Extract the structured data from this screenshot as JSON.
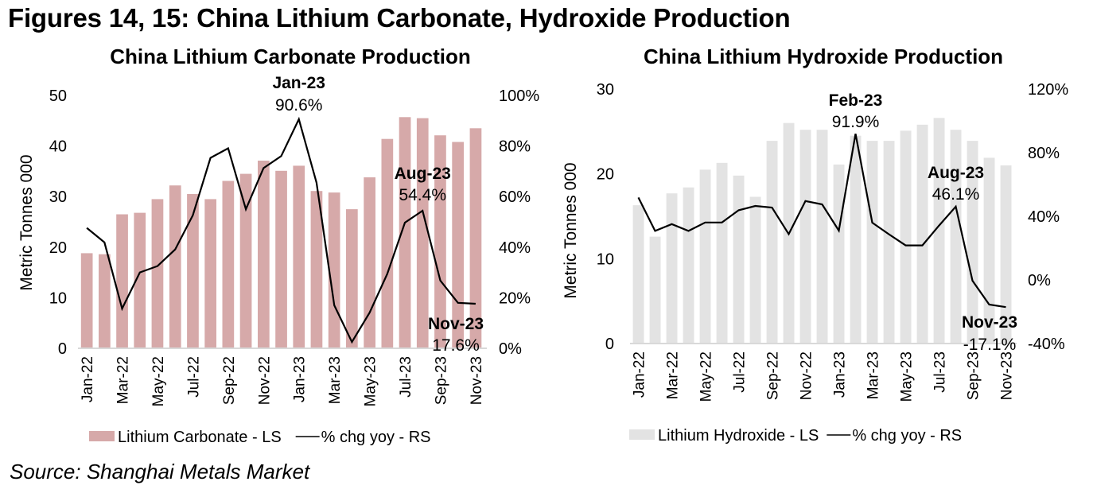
{
  "figure_title": "Figures 14, 15: China Lithium Carbonate, Hydroxide Production",
  "source": "Source: Shanghai Metals Market",
  "chart_data": [
    {
      "type": "bar+line",
      "title": "China Lithium Carbonate Production",
      "ylabel": "Metric Tonnes 000",
      "ylim": [
        0,
        50
      ],
      "y_ticks": [
        "0",
        "10",
        "20",
        "30",
        "40",
        "50"
      ],
      "y2lim": [
        0,
        100
      ],
      "y2_ticks": [
        "0%",
        "20%",
        "40%",
        "60%",
        "80%",
        "100%"
      ],
      "categories": [
        "Jan-22",
        "Feb-22",
        "Mar-22",
        "Apr-22",
        "May-22",
        "Jun-22",
        "Jul-22",
        "Aug-22",
        "Sep-22",
        "Oct-22",
        "Nov-22",
        "Dec-22",
        "Jan-23",
        "Feb-23",
        "Mar-23",
        "Apr-23",
        "May-23",
        "Jun-23",
        "Jul-23",
        "Aug-23",
        "Sep-23",
        "Oct-23",
        "Nov-23"
      ],
      "x_tick_labels": [
        "Jan-22",
        "Mar-22",
        "May-22",
        "Jul-22",
        "Sep-22",
        "Nov-22",
        "Jan-23",
        "Mar-23",
        "May-23",
        "Jul-23",
        "Sep-23",
        "Nov-23"
      ],
      "series": [
        {
          "name": "Lithium Carbonate - LS",
          "axis": "left",
          "kind": "bar",
          "color": "#d6a9a9",
          "values": [
            18.8,
            18.6,
            26.5,
            26.8,
            29.5,
            32.2,
            30.5,
            29.5,
            33.1,
            34.5,
            37.1,
            35.1,
            36.1,
            31.1,
            30.8,
            27.5,
            33.8,
            41.4,
            45.7,
            45.5,
            42.1,
            40.8,
            43.5
          ]
        },
        {
          "name": "% chg yoy - RS",
          "axis": "right",
          "kind": "line",
          "color": "#000000",
          "values": [
            47.6,
            41.9,
            15.7,
            30.0,
            32.5,
            39.1,
            52.6,
            75.3,
            79.1,
            55.0,
            71.3,
            76.0,
            90.6,
            65.5,
            17.0,
            2.5,
            14.1,
            29.4,
            49.7,
            54.4,
            26.8,
            18.0,
            17.6
          ]
        }
      ],
      "annotations": [
        {
          "label": "Jan-23",
          "value": "90.6%",
          "index": 12
        },
        {
          "label": "Aug-23",
          "value": "54.4%",
          "index": 19
        },
        {
          "label": "Nov-23",
          "value": "17.6%",
          "index": 22
        }
      ],
      "legend": "bottom"
    },
    {
      "type": "bar+line",
      "title": "China Lithium Hydroxide Production",
      "ylabel": "Metric Tonnes 000",
      "ylim": [
        0,
        30
      ],
      "y_ticks": [
        "0",
        "10",
        "20",
        "30"
      ],
      "y2lim": [
        -40,
        120
      ],
      "y2_ticks": [
        "-40%",
        "0%",
        "40%",
        "80%",
        "120%"
      ],
      "categories": [
        "Jan-22",
        "Feb-22",
        "Mar-22",
        "Apr-22",
        "May-22",
        "Jun-22",
        "Jul-22",
        "Aug-22",
        "Sep-22",
        "Oct-22",
        "Nov-22",
        "Dec-22",
        "Jan-23",
        "Feb-23",
        "Mar-23",
        "Apr-23",
        "May-23",
        "Jun-23",
        "Jul-23",
        "Aug-23",
        "Sep-23",
        "Oct-23",
        "Nov-23"
      ],
      "x_tick_labels": [
        "Jan-22",
        "Mar-22",
        "May-22",
        "Jul-22",
        "Sep-22",
        "Nov-22",
        "Jan-23",
        "Mar-23",
        "May-23",
        "Jul-23",
        "Sep-23",
        "Nov-23"
      ],
      "series": [
        {
          "name": "Lithium Hydroxide - LS",
          "axis": "left",
          "kind": "bar",
          "color": "#e3e3e3",
          "values": [
            16.3,
            12.6,
            17.7,
            18.4,
            20.5,
            21.3,
            19.8,
            17.3,
            23.9,
            26.0,
            25.2,
            25.2,
            21.1,
            24.5,
            23.9,
            23.9,
            25.1,
            25.8,
            26.6,
            25.2,
            23.9,
            21.9,
            21.0
          ]
        },
        {
          "name": "% chg yoy - RS",
          "axis": "right",
          "kind": "line",
          "color": "#000000",
          "values": [
            51.8,
            30.8,
            35.1,
            30.8,
            36.1,
            36.1,
            43.8,
            46.5,
            45.5,
            28.8,
            49.6,
            47.5,
            31.0,
            91.9,
            36.0,
            28.7,
            21.7,
            21.7,
            34.2,
            46.1,
            -0.5,
            -15.5,
            -17.1
          ]
        }
      ],
      "annotations": [
        {
          "label": "Feb-23",
          "value": "91.9%",
          "index": 13
        },
        {
          "label": "Aug-23",
          "value": "46.1%",
          "index": 19
        },
        {
          "label": "Nov-23",
          "value": "-17.1%",
          "index": 22
        }
      ],
      "legend": "bottom"
    }
  ]
}
